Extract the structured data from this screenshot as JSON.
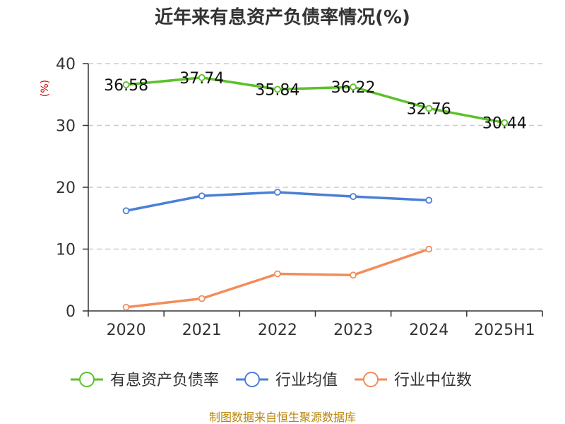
{
  "chart_data": {
    "type": "line",
    "title": "近年来有息资产负债率情况(%)",
    "ylabel": "(%)",
    "xlabel": "",
    "categories": [
      "2020",
      "2021",
      "2022",
      "2023",
      "2024",
      "2025H1"
    ],
    "ylim": [
      0,
      40
    ],
    "yticks": [
      0,
      10,
      20,
      30,
      40
    ],
    "grid": true,
    "legend_position": "bottom",
    "series": [
      {
        "name": "有息资产负债率",
        "color": "#5cc12c",
        "values": [
          36.58,
          37.74,
          35.84,
          36.22,
          32.76,
          30.44
        ],
        "labels": [
          "36.58",
          "37.74",
          "35.84",
          "36.22",
          "32.76",
          "30.44"
        ]
      },
      {
        "name": "行业均值",
        "color": "#4a7fd6",
        "values": [
          16.2,
          18.6,
          19.2,
          18.5,
          17.9,
          null
        ]
      },
      {
        "name": "行业中位数",
        "color": "#f28c5a",
        "values": [
          0.6,
          2.0,
          6.0,
          5.8,
          10.0,
          null
        ]
      }
    ]
  },
  "source": "制图数据来自恒生聚源数据库"
}
